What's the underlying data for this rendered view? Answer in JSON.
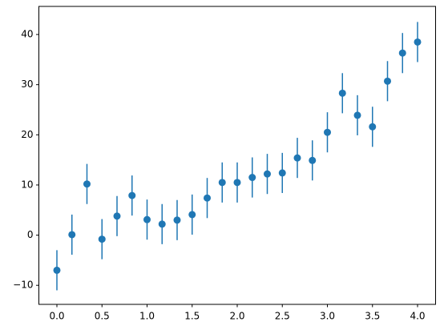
{
  "chart_data": {
    "type": "errorbar",
    "x": [
      0,
      0.1667,
      0.3333,
      0.5,
      0.6667,
      0.8333,
      1,
      1.1667,
      1.3333,
      1.5,
      1.6667,
      1.8333,
      2,
      2.1667,
      2.3333,
      2.5,
      2.6667,
      2.8333,
      3,
      3.1667,
      3.3333,
      3.5,
      3.6667,
      3.8333,
      4
    ],
    "values": [
      -7,
      0.1,
      10.2,
      -0.8,
      3.8,
      7.9,
      3.1,
      2.2,
      3.0,
      4.1,
      7.4,
      10.5,
      10.5,
      11.5,
      12.2,
      12.4,
      15.4,
      14.9,
      20.5,
      28.3,
      23.9,
      21.6,
      30.7,
      36.3,
      38.5
    ],
    "errors": [
      4,
      4,
      4,
      4,
      4,
      4,
      4,
      4,
      4,
      4,
      4,
      4,
      4,
      4,
      4,
      4,
      4,
      4,
      4,
      4,
      4,
      4,
      4,
      4,
      4
    ],
    "color": "#1f77b4",
    "xlim": [
      -0.2,
      4.2
    ],
    "xticks": [
      {
        "value": 0,
        "label": "0.0"
      },
      {
        "value": 0.5,
        "label": "0.5"
      },
      {
        "value": 1,
        "label": "1.0"
      },
      {
        "value": 1.5,
        "label": "1.5"
      },
      {
        "value": 2,
        "label": "2.0"
      },
      {
        "value": 2.5,
        "label": "2.5"
      },
      {
        "value": 3,
        "label": "3.0"
      },
      {
        "value": 3.5,
        "label": "3.5"
      },
      {
        "value": 4,
        "label": "4.0"
      }
    ],
    "ylim": [
      -13.8,
      45.6
    ],
    "yticks": [
      {
        "value": -10,
        "label": "−10"
      },
      0,
      10,
      20,
      30,
      40
    ]
  }
}
